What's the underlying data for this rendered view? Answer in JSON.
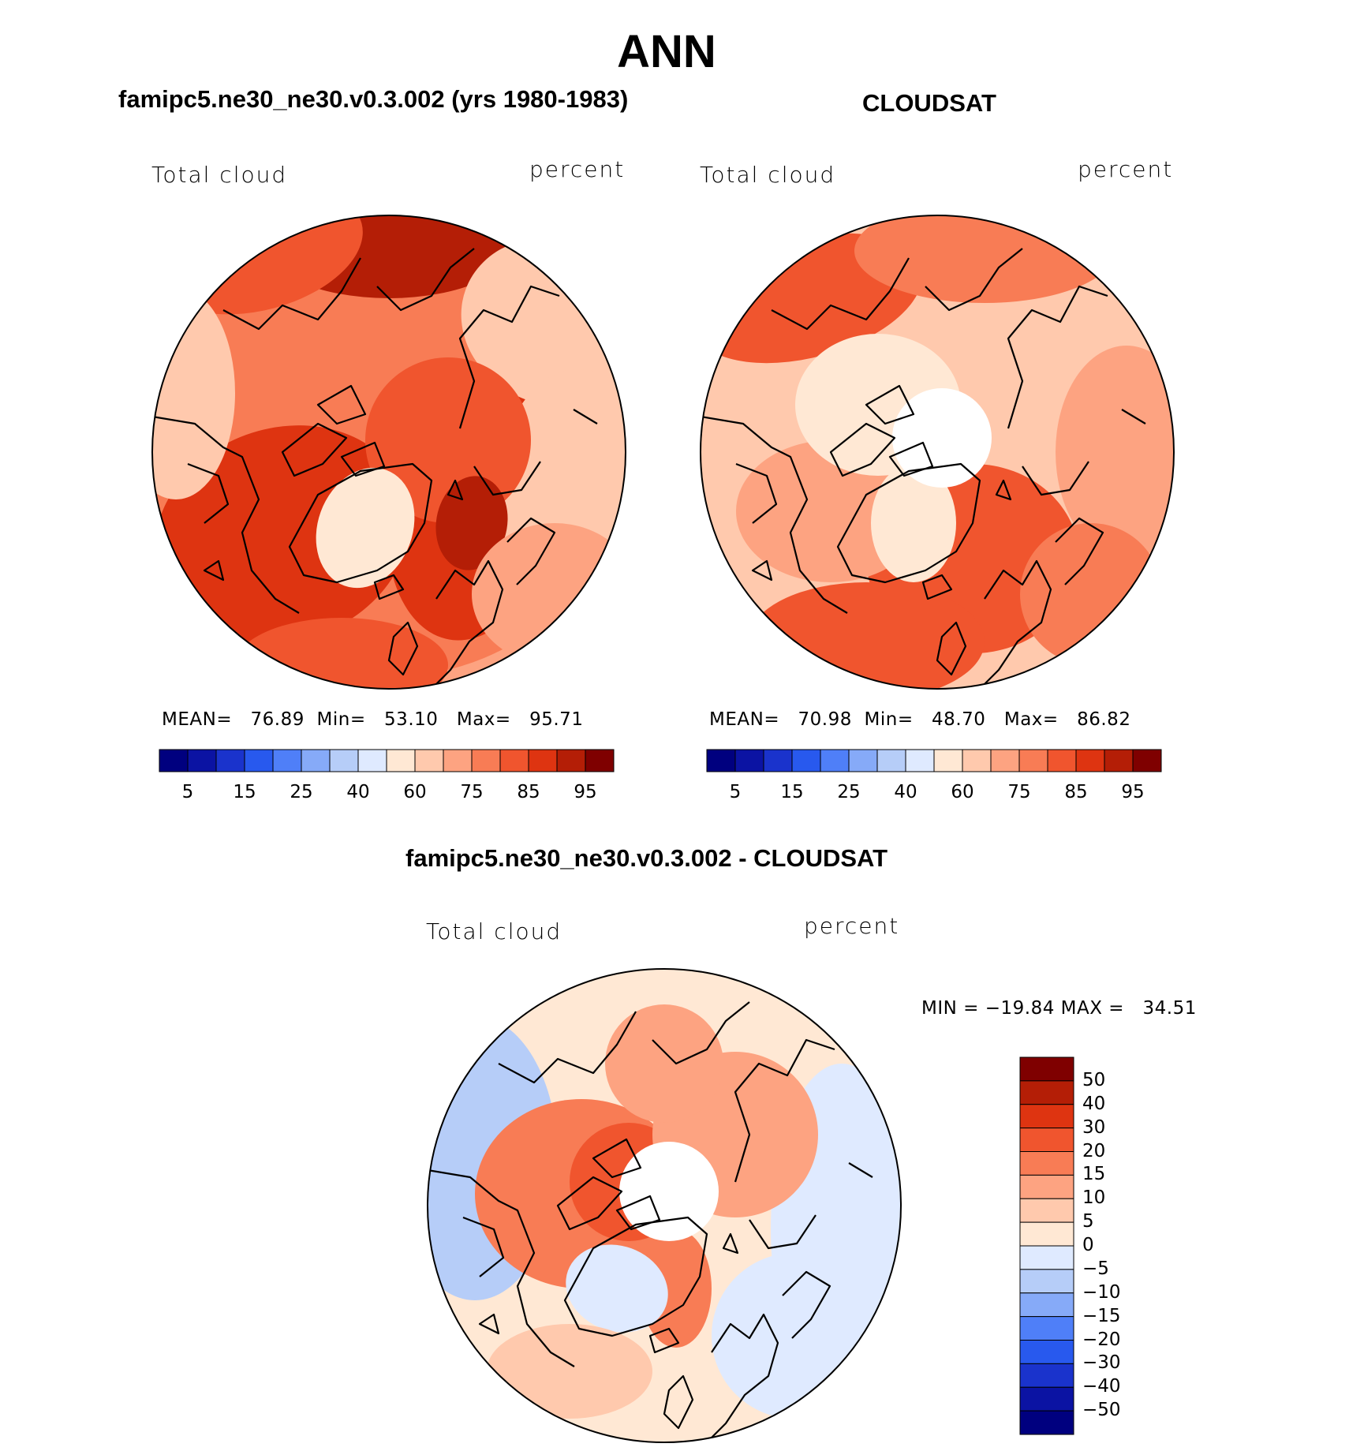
{
  "figure": {
    "title": "ANN"
  },
  "panels": [
    {
      "id": "model",
      "header": "famipc5.ne30_ne30.v0.3.002 (yrs 1980-1983)",
      "left_label": "Total cloud",
      "right_label": "percent",
      "stats": {
        "mean_label": "MEAN=",
        "mean": "76.89",
        "min_label": "Min=",
        "min": "53.10",
        "max_label": "Max=",
        "max": "95.71"
      }
    },
    {
      "id": "obs",
      "header": "CLOUDSAT",
      "left_label": "Total cloud",
      "right_label": "percent",
      "stats": {
        "mean_label": "MEAN=",
        "mean": "70.98",
        "min_label": "Min=",
        "min": "48.70",
        "max_label": "Max=",
        "max": "86.82"
      }
    },
    {
      "id": "diff",
      "header": "famipc5.ne30_ne30.v0.3.002 - CLOUDSAT",
      "left_label": "Total cloud",
      "right_label": "percent",
      "stats_text": "MIN = −19.84 MAX =   34.51"
    }
  ],
  "chart_data": [
    {
      "type": "heatmap",
      "title": "famipc5.ne30_ne30.v0.3.002 (yrs 1980-1983)",
      "projection": "north polar stereographic",
      "variable": "Total cloud",
      "units": "percent",
      "mean": 76.89,
      "min": 53.1,
      "max": 95.71,
      "colorbar": {
        "orientation": "horizontal",
        "tick_labels": [
          "5",
          "15",
          "25",
          "40",
          "60",
          "75",
          "85",
          "95"
        ],
        "colors": [
          "#00007f",
          "#0b13a3",
          "#1a33cc",
          "#2859ee",
          "#4f7ff8",
          "#86aaf8",
          "#b6cdf8",
          "#dfeaff",
          "#ffe8d4",
          "#ffc9ad",
          "#fda381",
          "#f87c55",
          "#f0552e",
          "#de3411",
          "#b41e06",
          "#7f0000"
        ]
      }
    },
    {
      "type": "heatmap",
      "title": "CLOUDSAT",
      "projection": "north polar stereographic",
      "variable": "Total cloud",
      "units": "percent",
      "mean": 70.98,
      "min": 48.7,
      "max": 86.82,
      "colorbar": {
        "orientation": "horizontal",
        "tick_labels": [
          "5",
          "15",
          "25",
          "40",
          "60",
          "75",
          "85",
          "95"
        ],
        "colors": [
          "#00007f",
          "#0b13a3",
          "#1a33cc",
          "#2859ee",
          "#4f7ff8",
          "#86aaf8",
          "#b6cdf8",
          "#dfeaff",
          "#ffe8d4",
          "#ffc9ad",
          "#fda381",
          "#f87c55",
          "#f0552e",
          "#de3411",
          "#b41e06",
          "#7f0000"
        ]
      }
    },
    {
      "type": "heatmap",
      "title": "famipc5.ne30_ne30.v0.3.002 - CLOUDSAT",
      "projection": "north polar stereographic",
      "variable": "Total cloud",
      "units": "percent",
      "min": -19.84,
      "max": 34.51,
      "colorbar": {
        "orientation": "vertical",
        "tick_labels": [
          "50",
          "40",
          "30",
          "20",
          "15",
          "10",
          "5",
          "0",
          "−5",
          "−10",
          "−15",
          "−20",
          "−30",
          "−40",
          "−50"
        ],
        "colors": [
          "#7f0000",
          "#b41e06",
          "#de3411",
          "#f0552e",
          "#f87c55",
          "#fda381",
          "#ffc9ad",
          "#ffe8d4",
          "#dfeaff",
          "#b6cdf8",
          "#86aaf8",
          "#4f7ff8",
          "#2859ee",
          "#1a33cc",
          "#0b13a3",
          "#00007f"
        ]
      }
    }
  ]
}
